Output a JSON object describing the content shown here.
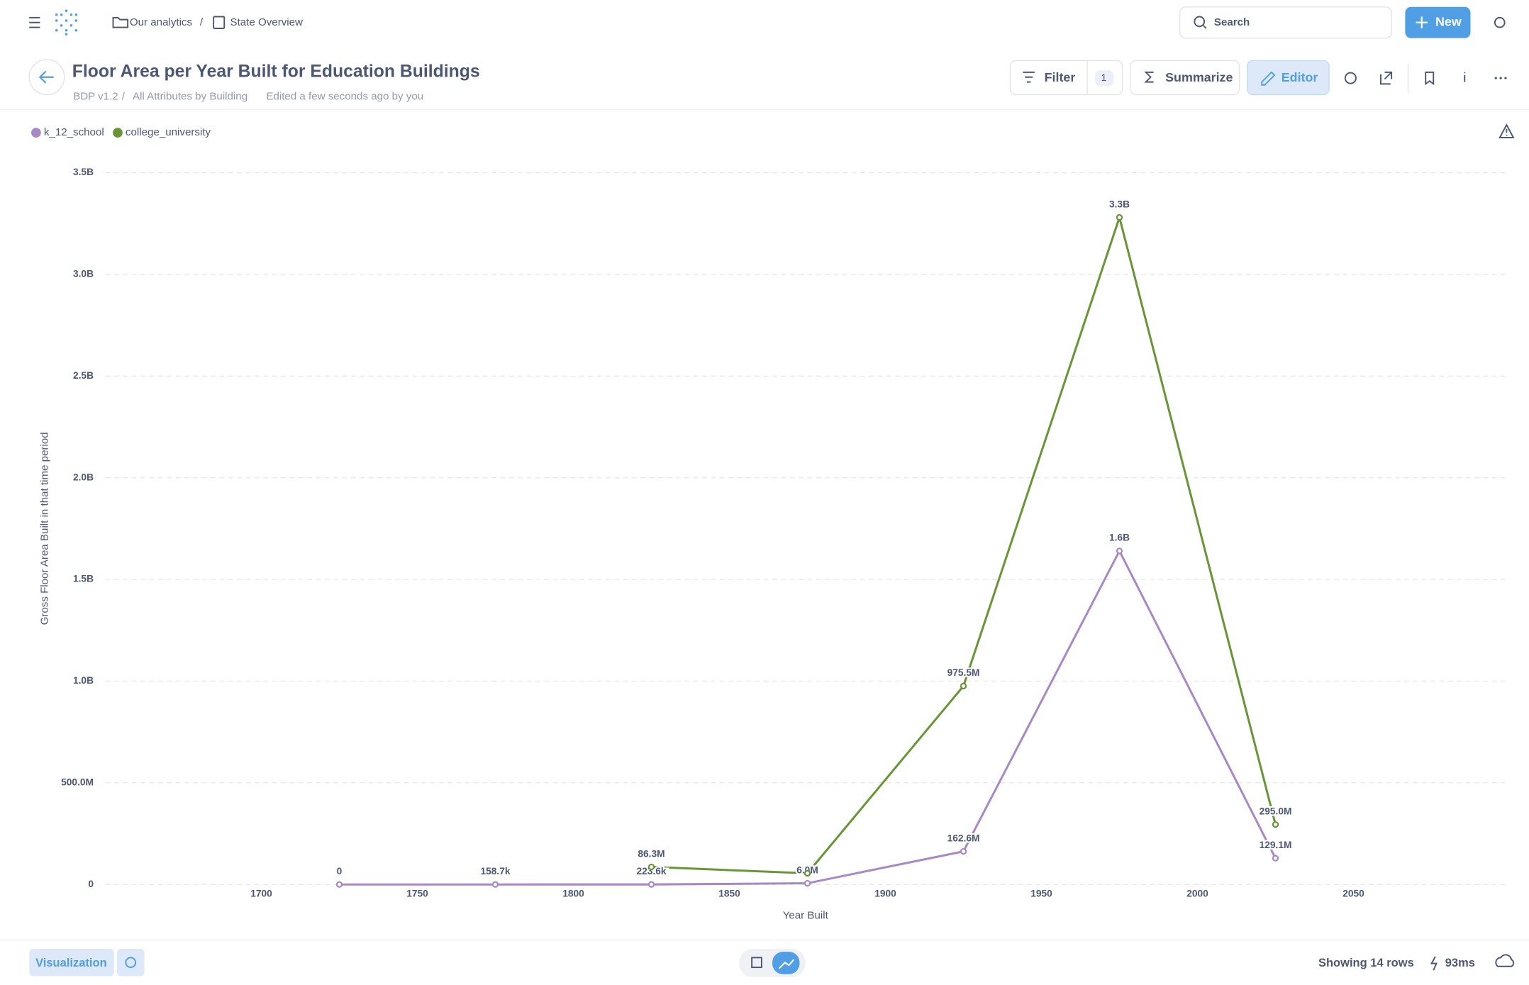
{
  "nav": {
    "breadcrumbs": [
      "Our analytics",
      "State Overview"
    ],
    "separator": "/",
    "search": "Search",
    "new": "New"
  },
  "header": {
    "title": "Floor Area per Year Built for Education Buildings",
    "source": "BDP v1.2",
    "table": "All Attributes by Building",
    "edited": "Edited a few seconds ago by you"
  },
  "toolbar": {
    "filter": "Filter",
    "filter_count": "1",
    "summarize": "Summarize",
    "editor": "Editor"
  },
  "footer": {
    "visualization": "Visualization",
    "rows": "Showing 14 rows",
    "time": "93ms"
  },
  "chart_data": {
    "type": "line",
    "x_label": "Year Built",
    "y_label": "Gross Floor Area Built in that time period",
    "x": [
      1725,
      1775,
      1825,
      1875,
      1925,
      1975,
      2025
    ],
    "series": [
      {
        "name": "k_12_school",
        "color": "#a989c5",
        "values": [
          0,
          158700,
          223600,
          6000000,
          162600000,
          1640000000,
          129100000
        ],
        "value_labels": [
          "0",
          "158.7k",
          "223.6k",
          "6.0M",
          "162.6M",
          "1.6B",
          "129.1M"
        ]
      },
      {
        "name": "college_university",
        "color": "#689636",
        "values": [
          null,
          null,
          86300000,
          55000000,
          975500000,
          3280000000,
          295000000
        ],
        "value_labels": [
          null,
          null,
          "86.3M",
          null,
          "975.5M",
          "3.3B",
          "295.0M"
        ]
      }
    ],
    "xlim": [
      1650,
      2100
    ],
    "xticks": [
      1700,
      1750,
      1800,
      1850,
      1900,
      1950,
      2000,
      2050
    ],
    "ylim": [
      0,
      3500000000
    ],
    "yticks": [
      0,
      {
        "value": 500000000,
        "label": "500.0M"
      },
      {
        "value": 1000000000,
        "label": "1.0B"
      },
      {
        "value": 1500000000,
        "label": "1.5B"
      },
      {
        "value": 2000000000,
        "label": "2.0B"
      },
      {
        "value": 2500000000,
        "label": "2.5B"
      },
      {
        "value": 3000000000,
        "label": "3.0B"
      },
      {
        "value": 3500000000,
        "label": "3.5B"
      }
    ],
    "grid": true
  }
}
